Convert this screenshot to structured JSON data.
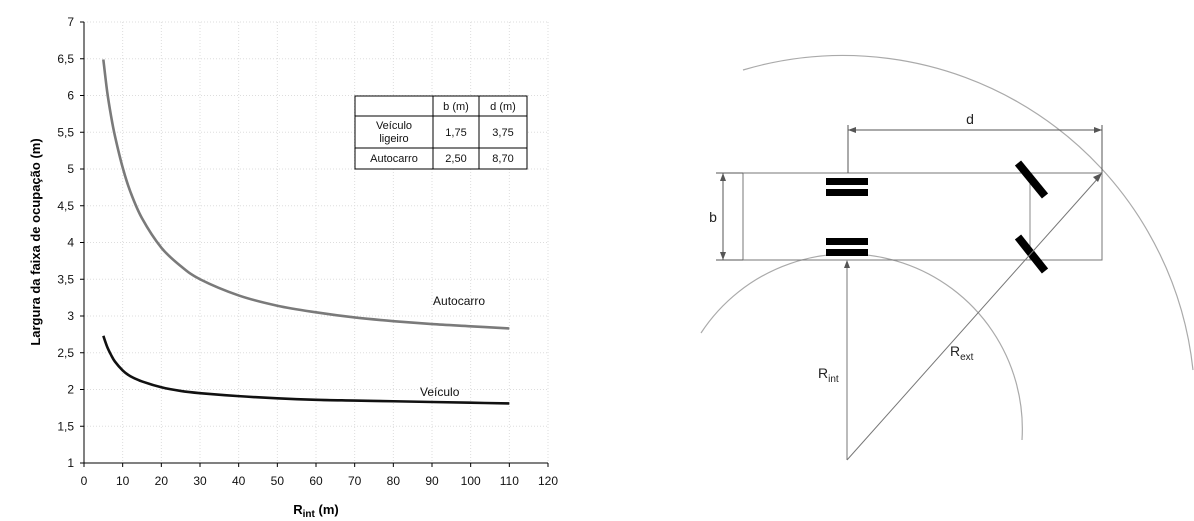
{
  "chart_data": {
    "type": "line",
    "xlabel_main": "R",
    "xlabel_sub": "int",
    "xlabel_unit": " (m)",
    "ylabel": "Largura da faixa de ocupação (m)",
    "xlim": [
      0,
      120
    ],
    "ylim": [
      1,
      7
    ],
    "xticks": [
      0,
      10,
      20,
      30,
      40,
      50,
      60,
      70,
      80,
      90,
      100,
      110,
      120
    ],
    "yticks": [
      1,
      1.5,
      2,
      2.5,
      3,
      3.5,
      4,
      4.5,
      5,
      5.5,
      6,
      6.5,
      7
    ],
    "ytick_labels": [
      "1",
      "1,5",
      "2",
      "2,5",
      "3",
      "3,5",
      "4",
      "4,5",
      "5",
      "5,5",
      "6",
      "6,5",
      "7"
    ],
    "grid": true,
    "series": [
      {
        "name": "Autocarro",
        "color": "#7a7a7a",
        "label_at": [
          97,
          3.15
        ],
        "x": [
          5,
          6,
          7,
          8,
          10,
          12,
          15,
          20,
          25,
          30,
          40,
          50,
          60,
          70,
          80,
          90,
          100,
          110
        ],
        "y": [
          6.49,
          6.05,
          5.72,
          5.45,
          5.02,
          4.69,
          4.33,
          3.93,
          3.68,
          3.5,
          3.28,
          3.14,
          3.05,
          2.98,
          2.93,
          2.89,
          2.86,
          2.83
        ]
      },
      {
        "name": "Veículo",
        "color": "#111111",
        "label_at": [
          92,
          1.91
        ],
        "x": [
          5,
          6,
          7,
          8,
          10,
          12,
          15,
          20,
          25,
          30,
          40,
          50,
          60,
          70,
          80,
          90,
          100,
          110
        ],
        "y": [
          2.73,
          2.58,
          2.47,
          2.38,
          2.26,
          2.18,
          2.11,
          2.03,
          1.98,
          1.95,
          1.91,
          1.88,
          1.86,
          1.85,
          1.84,
          1.83,
          1.82,
          1.81
        ]
      }
    ],
    "table": {
      "headers": [
        "",
        "b (m)",
        "d (m)"
      ],
      "rows": [
        {
          "label": [
            "Veículo",
            "ligeiro"
          ],
          "b": "1,75",
          "d": "3,75"
        },
        {
          "label": [
            "Autocarro"
          ],
          "b": "2,50",
          "d": "8,70"
        }
      ]
    }
  },
  "diagram": {
    "label_d": "d",
    "label_b": "b",
    "label_rint_main": "R",
    "label_rint_sub": "int",
    "label_rext_main": "R",
    "label_rext_sub": "ext",
    "line_color": "#555555",
    "arc_color": "#aaaaaa",
    "wheel_color": "#000000"
  }
}
